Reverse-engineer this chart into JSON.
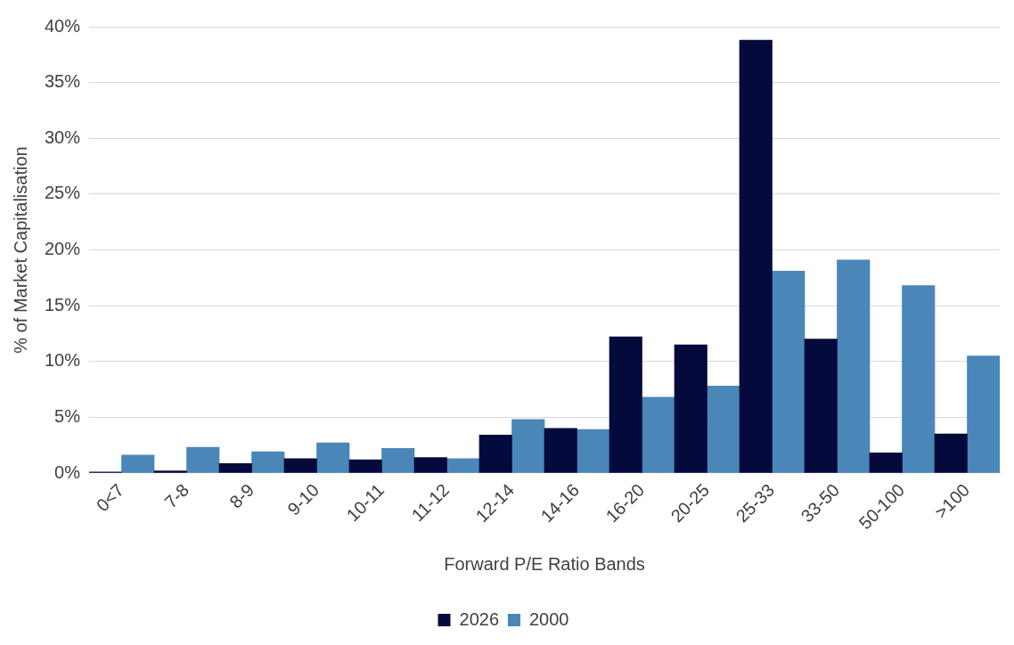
{
  "chart_data": {
    "type": "bar",
    "xlabel": "Forward P/E Ratio Bands",
    "ylabel": "% of Market Capitalisation",
    "categories": [
      "0<7",
      "7-8",
      "8-9",
      "9-10",
      "10-11",
      "11-12",
      "12-14",
      "14-16",
      "16-20",
      "20-25",
      "25-33",
      "33-50",
      "50-100",
      ">100"
    ],
    "series": [
      {
        "name": "2026",
        "color": "#050a3c",
        "values": [
          0.1,
          0.2,
          0.85,
          1.3,
          1.2,
          1.4,
          3.4,
          4.0,
          12.2,
          11.5,
          38.8,
          12.0,
          1.8,
          3.5
        ]
      },
      {
        "name": "2000",
        "color": "#4a86b8",
        "values": [
          1.6,
          2.3,
          1.9,
          2.7,
          2.2,
          1.3,
          4.8,
          3.9,
          6.8,
          7.8,
          18.1,
          19.1,
          16.8,
          10.5
        ]
      }
    ],
    "ylim": [
      0,
      40
    ],
    "yticks": [
      {
        "value": 0,
        "label": "0%"
      },
      {
        "value": 5,
        "label": "5%"
      },
      {
        "value": 10,
        "label": "10%"
      },
      {
        "value": 15,
        "label": "15%"
      },
      {
        "value": 20,
        "label": "20%"
      },
      {
        "value": 25,
        "label": "25%"
      },
      {
        "value": 30,
        "label": "30%"
      },
      {
        "value": 35,
        "label": "35%"
      },
      {
        "value": 40,
        "label": "40%"
      }
    ],
    "grid": "y",
    "legend": "bottom"
  }
}
